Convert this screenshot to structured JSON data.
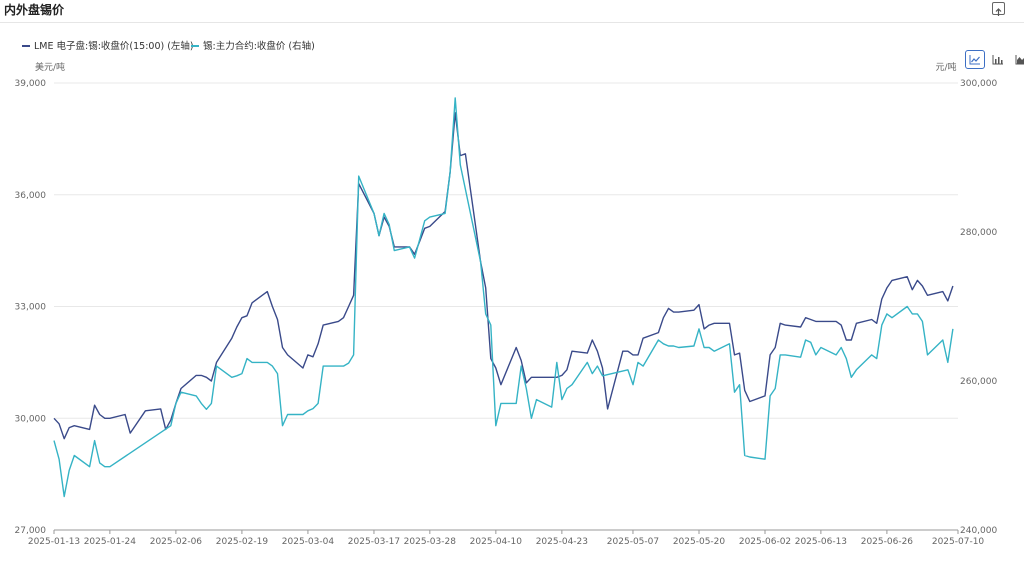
{
  "page": {
    "title": "内外盘锡价"
  },
  "toolbar": {
    "chart_types": [
      "line-chart-icon",
      "bar-chart-icon",
      "area-chart-icon"
    ],
    "active": "line-chart-icon"
  },
  "colors": {
    "lme": "#3a4a8a",
    "shfe": "#35b3c5",
    "grid": "#e8e8e8",
    "axis_text": "#666666"
  },
  "chart_data": {
    "type": "line",
    "legend": {
      "position": "top-left"
    },
    "y_left": {
      "unit": "美元/吨",
      "min": 27000,
      "max": 39000,
      "ticks": [
        "27,000",
        "30,000",
        "33,000",
        "36,000",
        "39,000"
      ]
    },
    "y_right": {
      "unit": "元/吨",
      "min": 240000,
      "max": 300000,
      "ticks": [
        "240,000",
        "260,000",
        "280,000",
        "300,000"
      ]
    },
    "x_ticks": [
      "2025-01-13",
      "2025-01-24",
      "2025-02-06",
      "2025-02-19",
      "2025-03-04",
      "2025-03-17",
      "2025-03-28",
      "2025-04-10",
      "2025-04-23",
      "2025-05-07",
      "2025-05-20",
      "2025-06-02",
      "2025-06-13",
      "2025-06-26",
      "2025-07-10"
    ],
    "series": [
      {
        "name": "LME 电子盘:锡:收盘价(15:00) (左轴)",
        "axis": "left",
        "points": [
          [
            "2025-01-13",
            30000
          ],
          [
            "2025-01-14",
            29850
          ],
          [
            "2025-01-15",
            29450
          ],
          [
            "2025-01-16",
            29750
          ],
          [
            "2025-01-17",
            29800
          ],
          [
            "2025-01-20",
            29700
          ],
          [
            "2025-01-21",
            30350
          ],
          [
            "2025-01-22",
            30100
          ],
          [
            "2025-01-23",
            30000
          ],
          [
            "2025-01-24",
            30000
          ],
          [
            "2025-01-27",
            30100
          ],
          [
            "2025-01-28",
            29600
          ],
          [
            "2025-01-31",
            30200
          ],
          [
            "2025-02-03",
            30250
          ],
          [
            "2025-02-04",
            29700
          ],
          [
            "2025-02-05",
            29950
          ],
          [
            "2025-02-06",
            30400
          ],
          [
            "2025-02-07",
            30800
          ],
          [
            "2025-02-10",
            31150
          ],
          [
            "2025-02-11",
            31150
          ],
          [
            "2025-02-12",
            31100
          ],
          [
            "2025-02-13",
            31000
          ],
          [
            "2025-02-14",
            31500
          ],
          [
            "2025-02-17",
            32150
          ],
          [
            "2025-02-18",
            32450
          ],
          [
            "2025-02-19",
            32700
          ],
          [
            "2025-02-20",
            32750
          ],
          [
            "2025-02-21",
            33100
          ],
          [
            "2025-02-24",
            33400
          ],
          [
            "2025-02-25",
            33000
          ],
          [
            "2025-02-26",
            32650
          ],
          [
            "2025-02-27",
            31900
          ],
          [
            "2025-02-28",
            31700
          ],
          [
            "2025-03-03",
            31350
          ],
          [
            "2025-03-04",
            31700
          ],
          [
            "2025-03-05",
            31650
          ],
          [
            "2025-03-06",
            32000
          ],
          [
            "2025-03-07",
            32500
          ],
          [
            "2025-03-10",
            32600
          ],
          [
            "2025-03-11",
            32700
          ],
          [
            "2025-03-12",
            33000
          ],
          [
            "2025-03-13",
            33300
          ],
          [
            "2025-03-14",
            36300
          ],
          [
            "2025-03-17",
            35500
          ],
          [
            "2025-03-18",
            34900
          ],
          [
            "2025-03-19",
            35400
          ],
          [
            "2025-03-20",
            35150
          ],
          [
            "2025-03-21",
            34600
          ],
          [
            "2025-03-24",
            34600
          ],
          [
            "2025-03-25",
            34400
          ],
          [
            "2025-03-26",
            34750
          ],
          [
            "2025-03-27",
            35100
          ],
          [
            "2025-03-28",
            35150
          ],
          [
            "2025-03-31",
            35550
          ],
          [
            "2025-04-01",
            36600
          ],
          [
            "2025-04-02",
            38200
          ],
          [
            "2025-04-03",
            37050
          ],
          [
            "2025-04-04",
            37100
          ],
          [
            "2025-04-07",
            34200
          ],
          [
            "2025-04-08",
            33500
          ],
          [
            "2025-04-09",
            31600
          ],
          [
            "2025-04-10",
            31350
          ],
          [
            "2025-04-11",
            30900
          ],
          [
            "2025-04-14",
            31900
          ],
          [
            "2025-04-15",
            31550
          ],
          [
            "2025-04-16",
            30950
          ],
          [
            "2025-04-17",
            31100
          ],
          [
            "2025-04-18",
            31100
          ],
          [
            "2025-04-21",
            31100
          ],
          [
            "2025-04-22",
            31100
          ],
          [
            "2025-04-23",
            31150
          ],
          [
            "2025-04-24",
            31300
          ],
          [
            "2025-04-25",
            31800
          ],
          [
            "2025-04-28",
            31750
          ],
          [
            "2025-04-29",
            32100
          ],
          [
            "2025-04-30",
            31800
          ],
          [
            "2025-05-01",
            31350
          ],
          [
            "2025-05-02",
            30250
          ],
          [
            "2025-05-05",
            31800
          ],
          [
            "2025-05-06",
            31800
          ],
          [
            "2025-05-07",
            31700
          ],
          [
            "2025-05-08",
            31700
          ],
          [
            "2025-05-09",
            32150
          ],
          [
            "2025-05-12",
            32300
          ],
          [
            "2025-05-13",
            32700
          ],
          [
            "2025-05-14",
            32950
          ],
          [
            "2025-05-15",
            32850
          ],
          [
            "2025-05-16",
            32850
          ],
          [
            "2025-05-19",
            32900
          ],
          [
            "2025-05-20",
            33050
          ],
          [
            "2025-05-21",
            32400
          ],
          [
            "2025-05-22",
            32500
          ],
          [
            "2025-05-23",
            32550
          ],
          [
            "2025-05-26",
            32550
          ],
          [
            "2025-05-27",
            31700
          ],
          [
            "2025-05-28",
            31750
          ],
          [
            "2025-05-29",
            30750
          ],
          [
            "2025-05-30",
            30450
          ],
          [
            "2025-06-02",
            30600
          ],
          [
            "2025-06-03",
            31700
          ],
          [
            "2025-06-04",
            31900
          ],
          [
            "2025-06-05",
            32550
          ],
          [
            "2025-06-06",
            32500
          ],
          [
            "2025-06-09",
            32450
          ],
          [
            "2025-06-10",
            32700
          ],
          [
            "2025-06-11",
            32650
          ],
          [
            "2025-06-12",
            32600
          ],
          [
            "2025-06-13",
            32600
          ],
          [
            "2025-06-16",
            32600
          ],
          [
            "2025-06-17",
            32500
          ],
          [
            "2025-06-18",
            32100
          ],
          [
            "2025-06-19",
            32100
          ],
          [
            "2025-06-20",
            32550
          ],
          [
            "2025-06-23",
            32650
          ],
          [
            "2025-06-24",
            32550
          ],
          [
            "2025-06-25",
            33200
          ],
          [
            "2025-06-26",
            33500
          ],
          [
            "2025-06-27",
            33700
          ],
          [
            "2025-06-30",
            33800
          ],
          [
            "2025-07-01",
            33450
          ],
          [
            "2025-07-02",
            33700
          ],
          [
            "2025-07-03",
            33550
          ],
          [
            "2025-07-04",
            33300
          ],
          [
            "2025-07-07",
            33400
          ],
          [
            "2025-07-08",
            33150
          ],
          [
            "2025-07-09",
            33550
          ]
        ]
      },
      {
        "name": "锡:主力合约:收盘价 (右轴)",
        "axis": "right",
        "points": [
          [
            "2025-01-13",
            252000
          ],
          [
            "2025-01-14",
            249500
          ],
          [
            "2025-01-15",
            244500
          ],
          [
            "2025-01-16",
            248000
          ],
          [
            "2025-01-17",
            250000
          ],
          [
            "2025-01-20",
            248500
          ],
          [
            "2025-01-21",
            252000
          ],
          [
            "2025-01-22",
            249000
          ],
          [
            "2025-01-23",
            248500
          ],
          [
            "2025-01-24",
            248500
          ],
          [
            "2025-02-05",
            254000
          ],
          [
            "2025-02-06",
            257000
          ],
          [
            "2025-02-07",
            258500
          ],
          [
            "2025-02-10",
            258000
          ],
          [
            "2025-02-11",
            257000
          ],
          [
            "2025-02-12",
            256200
          ],
          [
            "2025-02-13",
            257000
          ],
          [
            "2025-02-14",
            262000
          ],
          [
            "2025-02-17",
            260500
          ],
          [
            "2025-02-18",
            260700
          ],
          [
            "2025-02-19",
            261000
          ],
          [
            "2025-02-20",
            263000
          ],
          [
            "2025-02-21",
            262500
          ],
          [
            "2025-02-24",
            262500
          ],
          [
            "2025-02-25",
            262000
          ],
          [
            "2025-02-26",
            261000
          ],
          [
            "2025-02-27",
            254000
          ],
          [
            "2025-02-28",
            255500
          ],
          [
            "2025-03-03",
            255500
          ],
          [
            "2025-03-04",
            256000
          ],
          [
            "2025-03-05",
            256300
          ],
          [
            "2025-03-06",
            257000
          ],
          [
            "2025-03-07",
            262000
          ],
          [
            "2025-03-10",
            262000
          ],
          [
            "2025-03-11",
            262000
          ],
          [
            "2025-03-12",
            262400
          ],
          [
            "2025-03-13",
            263500
          ],
          [
            "2025-03-14",
            287500
          ],
          [
            "2025-03-17",
            282500
          ],
          [
            "2025-03-18",
            279500
          ],
          [
            "2025-03-19",
            282500
          ],
          [
            "2025-03-20",
            281000
          ],
          [
            "2025-03-21",
            277500
          ],
          [
            "2025-03-24",
            278000
          ],
          [
            "2025-03-25",
            276500
          ],
          [
            "2025-03-26",
            279000
          ],
          [
            "2025-03-27",
            281500
          ],
          [
            "2025-03-28",
            282000
          ],
          [
            "2025-03-31",
            282500
          ],
          [
            "2025-04-01",
            288000
          ],
          [
            "2025-04-02",
            298000
          ],
          [
            "2025-04-03",
            289000
          ],
          [
            "2025-04-07",
            276000
          ],
          [
            "2025-04-08",
            269000
          ],
          [
            "2025-04-09",
            267500
          ],
          [
            "2025-04-10",
            254000
          ],
          [
            "2025-04-11",
            257000
          ],
          [
            "2025-04-14",
            257000
          ],
          [
            "2025-04-15",
            262000
          ],
          [
            "2025-04-16",
            259000
          ],
          [
            "2025-04-17",
            255000
          ],
          [
            "2025-04-18",
            257500
          ],
          [
            "2025-04-21",
            256500
          ],
          [
            "2025-04-22",
            262500
          ],
          [
            "2025-04-23",
            257500
          ],
          [
            "2025-04-24",
            259000
          ],
          [
            "2025-04-25",
            259500
          ],
          [
            "2025-04-28",
            262500
          ],
          [
            "2025-04-29",
            261000
          ],
          [
            "2025-04-30",
            262000
          ],
          [
            "2025-05-01",
            260700
          ],
          [
            "2025-05-06",
            261500
          ],
          [
            "2025-05-07",
            259500
          ],
          [
            "2025-05-08",
            262500
          ],
          [
            "2025-05-09",
            262000
          ],
          [
            "2025-05-12",
            265500
          ],
          [
            "2025-05-13",
            265000
          ],
          [
            "2025-05-14",
            264700
          ],
          [
            "2025-05-15",
            264700
          ],
          [
            "2025-05-16",
            264500
          ],
          [
            "2025-05-19",
            264700
          ],
          [
            "2025-05-20",
            267000
          ],
          [
            "2025-05-21",
            264500
          ],
          [
            "2025-05-22",
            264500
          ],
          [
            "2025-05-23",
            264000
          ],
          [
            "2025-05-26",
            265000
          ],
          [
            "2025-05-27",
            258500
          ],
          [
            "2025-05-28",
            259500
          ],
          [
            "2025-05-29",
            250000
          ],
          [
            "2025-05-30",
            249800
          ],
          [
            "2025-06-02",
            249500
          ],
          [
            "2025-06-03",
            258000
          ],
          [
            "2025-06-04",
            259000
          ],
          [
            "2025-06-05",
            263500
          ],
          [
            "2025-06-06",
            263500
          ],
          [
            "2025-06-09",
            263200
          ],
          [
            "2025-06-10",
            265500
          ],
          [
            "2025-06-11",
            265200
          ],
          [
            "2025-06-12",
            263500
          ],
          [
            "2025-06-13",
            264500
          ],
          [
            "2025-06-16",
            263500
          ],
          [
            "2025-06-17",
            264500
          ],
          [
            "2025-06-18",
            263000
          ],
          [
            "2025-06-19",
            260500
          ],
          [
            "2025-06-20",
            261500
          ],
          [
            "2025-06-23",
            263500
          ],
          [
            "2025-06-24",
            263000
          ],
          [
            "2025-06-25",
            267500
          ],
          [
            "2025-06-26",
            269000
          ],
          [
            "2025-06-27",
            268500
          ],
          [
            "2025-06-30",
            270000
          ],
          [
            "2025-07-01",
            269000
          ],
          [
            "2025-07-02",
            269000
          ],
          [
            "2025-07-03",
            268000
          ],
          [
            "2025-07-04",
            263500
          ],
          [
            "2025-07-07",
            265500
          ],
          [
            "2025-07-08",
            262500
          ],
          [
            "2025-07-09",
            267000
          ]
        ]
      }
    ]
  }
}
